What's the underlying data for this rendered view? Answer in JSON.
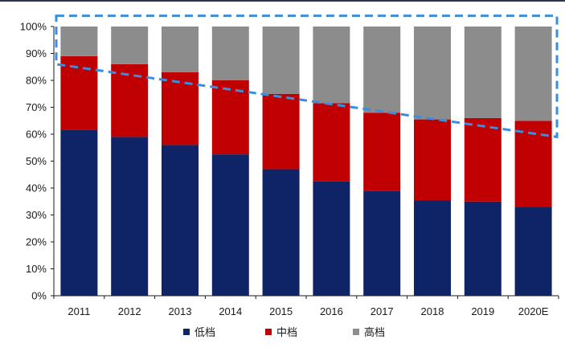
{
  "chart_data": {
    "type": "bar",
    "stacked": true,
    "percent": true,
    "title": "",
    "xlabel": "",
    "ylabel": "",
    "ylim": [
      0,
      100
    ],
    "y_ticks": [
      "0%",
      "10%",
      "20%",
      "30%",
      "40%",
      "50%",
      "60%",
      "70%",
      "80%",
      "90%",
      "100%"
    ],
    "y_tick_values": [
      0,
      10,
      20,
      30,
      40,
      50,
      60,
      70,
      80,
      90,
      100
    ],
    "categories": [
      "2011",
      "2012",
      "2013",
      "2014",
      "2015",
      "2016",
      "2017",
      "2018",
      "2019",
      "2020E"
    ],
    "series": [
      {
        "name": "低档",
        "color": "#0f2466",
        "values": [
          61.5,
          59,
          56,
          52.5,
          47,
          42.5,
          39,
          35.5,
          35,
          33
        ]
      },
      {
        "name": "中档",
        "color": "#c00000",
        "values": [
          27.5,
          27,
          27,
          27.5,
          28,
          29,
          29,
          30,
          31,
          32
        ]
      },
      {
        "name": "高档",
        "color": "#8c8c8c",
        "values": [
          11,
          14,
          17,
          20,
          25,
          28.5,
          32,
          34.5,
          34,
          35
        ]
      }
    ],
    "annotation": {
      "shape": "dashed-trapezoid",
      "color": "#3b8ede",
      "left_value": 86,
      "right_value": 59,
      "top_value": 104
    },
    "legend_position": "bottom-center"
  }
}
